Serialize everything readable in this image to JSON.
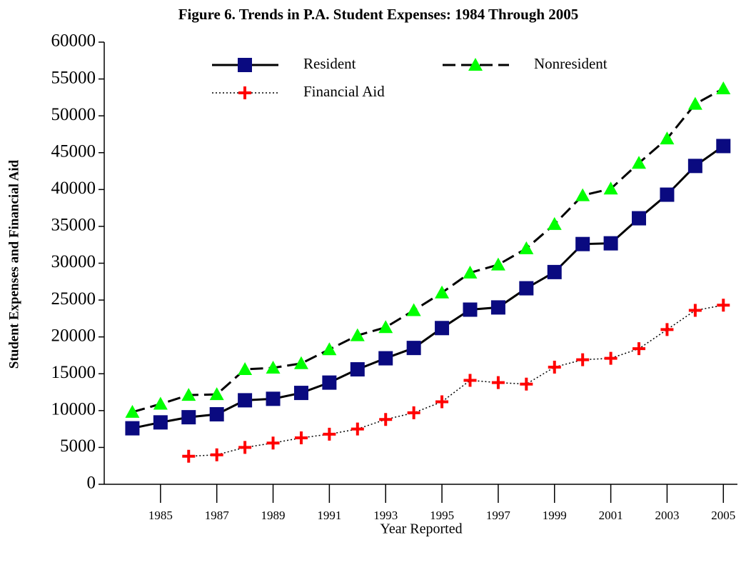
{
  "chart_data": {
    "type": "line",
    "title": "Figure 6.  Trends in P.A. Student Expenses: 1984 Through 2005",
    "x_label": "Year Reported",
    "y_label": "Student Expenses and Financial Aid",
    "x": [
      1984,
      1985,
      1986,
      1987,
      1988,
      1989,
      1990,
      1991,
      1992,
      1993,
      1994,
      1995,
      1996,
      1997,
      1998,
      1999,
      2000,
      2001,
      2002,
      2003,
      2004,
      2005
    ],
    "series": [
      {
        "name": "Resident",
        "color": "#0a0a80",
        "dash": "solid",
        "marker": "square",
        "values": [
          7600,
          8400,
          9100,
          9500,
          11400,
          11600,
          12400,
          13800,
          15600,
          17100,
          18500,
          21200,
          23700,
          24000,
          26600,
          28800,
          32600,
          32700,
          36100,
          39300,
          43200,
          45900
        ]
      },
      {
        "name": "Nonresident",
        "color": "#00ff00",
        "dash": "dashed",
        "marker": "triangle",
        "values": [
          9800,
          10900,
          12100,
          12200,
          15600,
          15800,
          16400,
          18300,
          20200,
          21300,
          23600,
          26000,
          28700,
          29800,
          32000,
          35300,
          39200,
          40100,
          43600,
          46900,
          51600,
          53700
        ]
      },
      {
        "name": "Financial Aid",
        "color": "#ff0000",
        "dash": "dotted",
        "marker": "plus",
        "values": [
          null,
          null,
          3800,
          4000,
          5000,
          5600,
          6300,
          6800,
          7500,
          8800,
          9700,
          11200,
          14100,
          13800,
          13600,
          15900,
          16900,
          17100,
          18400,
          21000,
          23600,
          24300
        ]
      }
    ],
    "xlim": [
      1983,
      2005.5
    ],
    "xticks": [
      1985,
      1987,
      1989,
      1991,
      1993,
      1995,
      1997,
      1999,
      2001,
      2003,
      2005
    ],
    "ylim": [
      0,
      60000
    ],
    "yticks": [
      0,
      5000,
      10000,
      15000,
      20000,
      25000,
      30000,
      35000,
      40000,
      45000,
      50000,
      55000,
      60000
    ],
    "legend": "top-center"
  }
}
